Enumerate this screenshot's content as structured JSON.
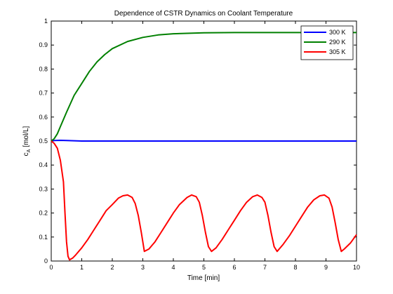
{
  "chart_data": {
    "type": "line",
    "title": "Dependence of CSTR Dynamics on Coolant Temperature",
    "xlabel": "Time [min]",
    "ylabel_main": "c",
    "ylabel_sub": "A",
    "ylabel_unit": "[mol/L]",
    "xlim": [
      0,
      10
    ],
    "ylim": [
      0,
      1
    ],
    "xticks": [
      0,
      1,
      2,
      3,
      4,
      5,
      6,
      7,
      8,
      9,
      10
    ],
    "yticks": [
      0,
      0.1,
      0.2,
      0.3,
      0.4,
      0.5,
      0.6,
      0.7,
      0.8,
      0.9,
      1
    ],
    "grid": false,
    "legend_position": "top-right",
    "series": [
      {
        "name": "300 K",
        "color": "#0000ff",
        "x": [
          0,
          0.1,
          0.3,
          0.5,
          1,
          2,
          3,
          4,
          5,
          6,
          7,
          8,
          9,
          10
        ],
        "y": [
          0.5,
          0.502,
          0.503,
          0.502,
          0.5,
          0.5,
          0.5,
          0.5,
          0.5,
          0.5,
          0.5,
          0.5,
          0.5,
          0.5
        ]
      },
      {
        "name": "290 K",
        "color": "#008000",
        "x": [
          0,
          0.1,
          0.2,
          0.3,
          0.5,
          0.75,
          1,
          1.25,
          1.5,
          1.75,
          2,
          2.5,
          3,
          3.5,
          4,
          5,
          6,
          7,
          8,
          9,
          10
        ],
        "y": [
          0.5,
          0.51,
          0.53,
          0.56,
          0.62,
          0.69,
          0.74,
          0.79,
          0.83,
          0.86,
          0.885,
          0.915,
          0.932,
          0.942,
          0.947,
          0.951,
          0.952,
          0.952,
          0.952,
          0.952,
          0.952
        ]
      },
      {
        "name": "305 K",
        "color": "#ff0000",
        "x": [
          0,
          0.1,
          0.2,
          0.3,
          0.4,
          0.45,
          0.5,
          0.55,
          0.6,
          0.7,
          0.8,
          1.0,
          1.2,
          1.4,
          1.6,
          1.8,
          2.0,
          2.2,
          2.35,
          2.5,
          2.65,
          2.75,
          2.85,
          2.95,
          3.05,
          3.2,
          3.4,
          3.6,
          3.8,
          4.0,
          4.2,
          4.45,
          4.6,
          4.75,
          4.85,
          4.95,
          5.05,
          5.15,
          5.25,
          5.4,
          5.6,
          5.8,
          6.0,
          6.2,
          6.4,
          6.6,
          6.75,
          6.9,
          7.0,
          7.1,
          7.2,
          7.3,
          7.4,
          7.6,
          7.8,
          8.0,
          8.2,
          8.4,
          8.6,
          8.8,
          8.95,
          9.1,
          9.2,
          9.3,
          9.4,
          9.5,
          9.6,
          9.8,
          10.0
        ],
        "y": [
          0.5,
          0.49,
          0.47,
          0.42,
          0.33,
          0.2,
          0.08,
          0.02,
          0.005,
          0.012,
          0.025,
          0.055,
          0.09,
          0.13,
          0.17,
          0.21,
          0.235,
          0.262,
          0.272,
          0.275,
          0.265,
          0.24,
          0.19,
          0.12,
          0.04,
          0.05,
          0.08,
          0.12,
          0.16,
          0.2,
          0.235,
          0.265,
          0.275,
          0.268,
          0.245,
          0.19,
          0.12,
          0.06,
          0.04,
          0.055,
          0.09,
          0.13,
          0.17,
          0.21,
          0.245,
          0.268,
          0.275,
          0.265,
          0.245,
          0.19,
          0.12,
          0.06,
          0.04,
          0.07,
          0.105,
          0.145,
          0.185,
          0.225,
          0.255,
          0.272,
          0.275,
          0.262,
          0.225,
          0.16,
          0.09,
          0.04,
          0.05,
          0.075,
          0.11
        ]
      }
    ]
  }
}
